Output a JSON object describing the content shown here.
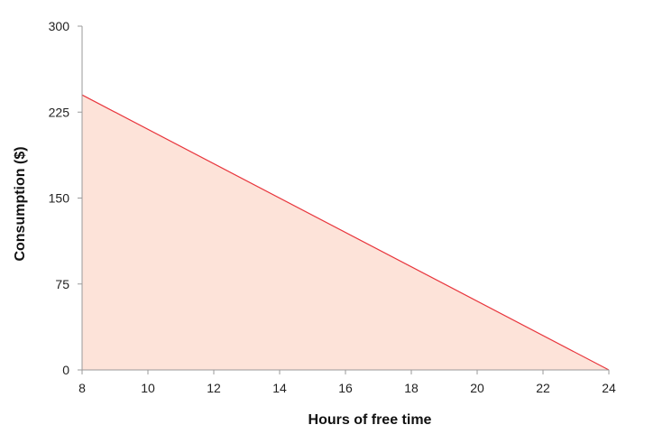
{
  "chart_data": {
    "type": "area",
    "title": "",
    "xlabel": "Hours of free time",
    "ylabel": "Consumption ($)",
    "xlim": [
      8,
      24
    ],
    "ylim": [
      0,
      300
    ],
    "x_ticks": [
      "8",
      "10",
      "12",
      "14",
      "16",
      "18",
      "20",
      "22",
      "24"
    ],
    "y_ticks": [
      "0",
      "75",
      "150",
      "225",
      "300"
    ],
    "grid": false,
    "series": [
      {
        "x": [
          8,
          24
        ],
        "y": [
          240,
          0
        ],
        "line_color": "#e8363d",
        "fill_color": "#fde3d9"
      }
    ]
  }
}
